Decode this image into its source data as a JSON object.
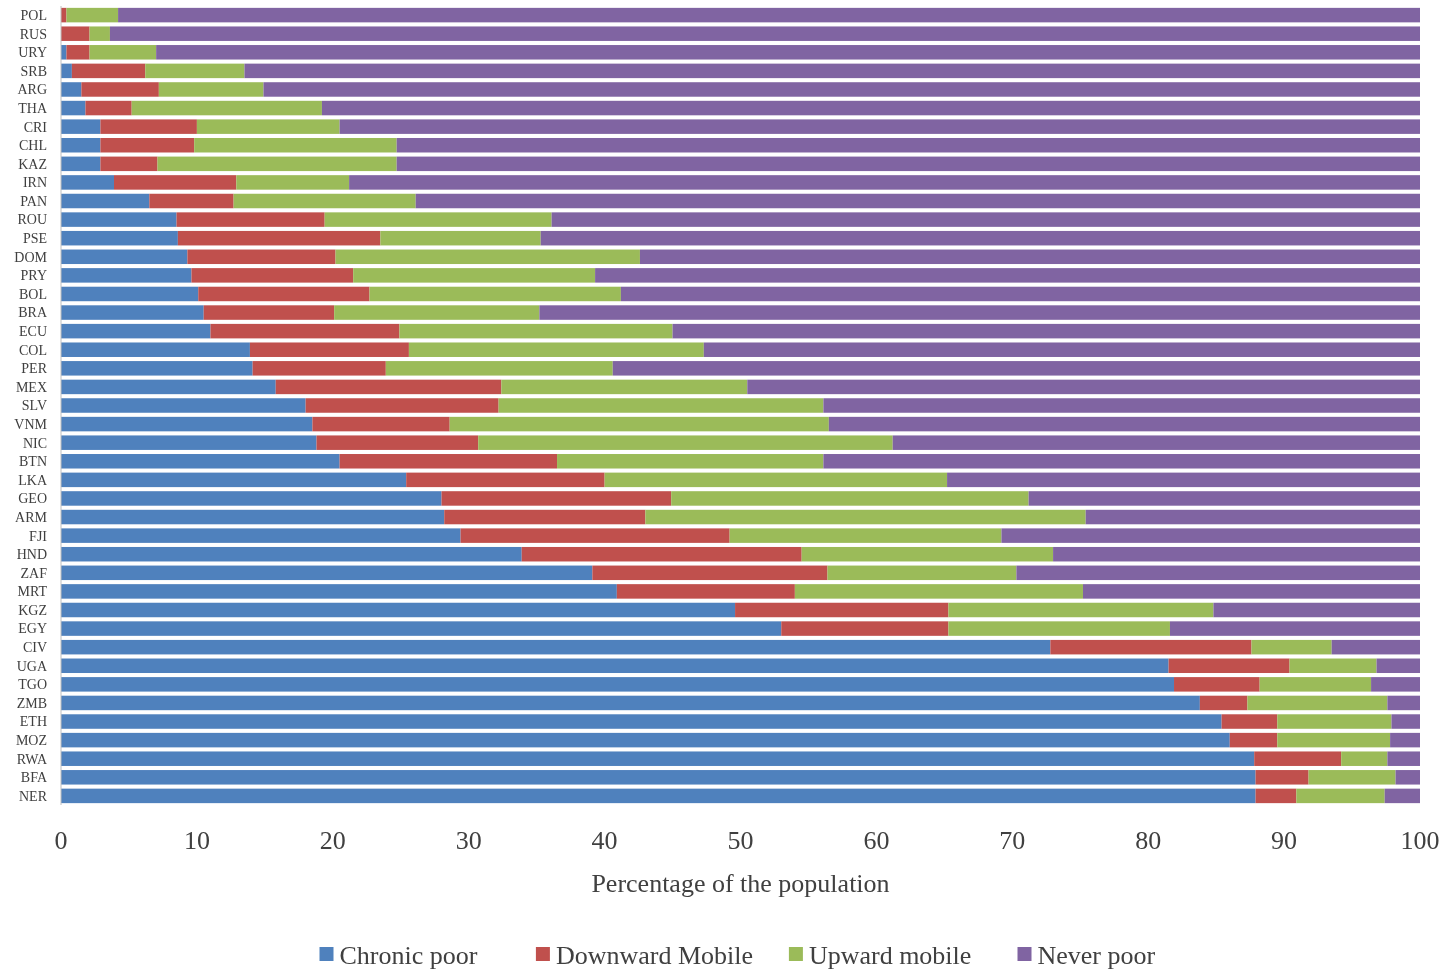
{
  "chart_data": {
    "type": "bar",
    "orientation": "horizontal",
    "stacked": true,
    "xlabel": "Percentage of the population",
    "legend": "bottom",
    "grid": false,
    "categories": [
      "POL",
      "RUS",
      "URY",
      "SRB",
      "ARG",
      "THA",
      "CRI",
      "CHL",
      "KAZ",
      "IRN",
      "PAN",
      "ROU",
      "PSE",
      "DOM",
      "PRY",
      "BOL",
      "BRA",
      "ECU",
      "COL",
      "PER",
      "MEX",
      "SLV",
      "VNM",
      "NIC",
      "BTN",
      "LKA",
      "GEO",
      "ARM",
      "FJI",
      "HND",
      "ZAF",
      "MRT",
      "KGZ",
      "EGY",
      "CIV",
      "UGA",
      "TGO",
      "ZMB",
      "ETH",
      "MOZ",
      "RWA",
      "BFA",
      "NER"
    ],
    "xlim": [
      0,
      100
    ],
    "xticks": [
      0,
      10,
      20,
      30,
      40,
      50,
      60,
      70,
      80,
      90,
      100
    ],
    "series": [
      {
        "name": "Chronic poor",
        "color": "#4f81bd",
        "values": [
          0,
          0,
          0.4,
          0.8,
          1.5,
          1.8,
          2.9,
          2.9,
          2.9,
          3.9,
          6.5,
          8.5,
          8.6,
          9.3,
          9.6,
          10.1,
          10.5,
          11.0,
          13.9,
          14.1,
          15.8,
          18.0,
          18.5,
          18.8,
          20.5,
          25.4,
          28.0,
          28.2,
          29.4,
          33.9,
          39.1,
          40.9,
          49.6,
          53.0,
          72.8,
          81.5,
          81.9,
          83.8,
          85.4,
          86.0,
          87.8,
          87.9,
          87.9
        ]
      },
      {
        "name": "Downward Mobile",
        "color": "#c0504d",
        "values": [
          0.4,
          2.1,
          1.7,
          5.4,
          5.7,
          3.4,
          7.1,
          6.9,
          4.2,
          9.0,
          6.2,
          10.9,
          14.9,
          10.9,
          11.9,
          12.6,
          9.6,
          13.9,
          11.7,
          9.8,
          16.6,
          14.2,
          10.1,
          11.9,
          16.0,
          14.6,
          16.9,
          14.8,
          19.8,
          20.6,
          17.3,
          13.1,
          15.7,
          12.3,
          14.8,
          8.9,
          6.3,
          3.5,
          4.1,
          3.5,
          6.4,
          3.9,
          3.0
        ]
      },
      {
        "name": "Upward mobile",
        "color": "#9bbb59",
        "values": [
          3.8,
          1.5,
          4.9,
          7.3,
          7.7,
          14.0,
          10.5,
          14.9,
          17.6,
          8.3,
          13.4,
          16.7,
          11.8,
          22.4,
          17.8,
          18.5,
          15.1,
          20.1,
          21.7,
          16.7,
          18.1,
          23.9,
          27.9,
          30.5,
          19.6,
          25.2,
          26.3,
          32.4,
          20.0,
          18.5,
          13.9,
          21.2,
          19.5,
          16.3,
          5.9,
          6.4,
          8.2,
          10.3,
          8.4,
          8.3,
          3.4,
          6.4,
          6.5
        ]
      },
      {
        "name": "Never poor",
        "color": "#8064a2",
        "values": [
          95.8,
          96.4,
          93.0,
          86.5,
          85.1,
          80.8,
          79.5,
          75.3,
          75.3,
          78.8,
          73.9,
          63.9,
          64.7,
          57.4,
          60.7,
          58.8,
          64.8,
          55.0,
          52.7,
          59.4,
          49.5,
          43.9,
          43.5,
          38.8,
          43.9,
          34.8,
          28.8,
          24.6,
          30.8,
          27.0,
          29.7,
          24.8,
          15.2,
          18.4,
          6.5,
          3.2,
          3.6,
          2.4,
          2.1,
          2.2,
          2.4,
          1.8,
          2.6
        ]
      }
    ]
  }
}
